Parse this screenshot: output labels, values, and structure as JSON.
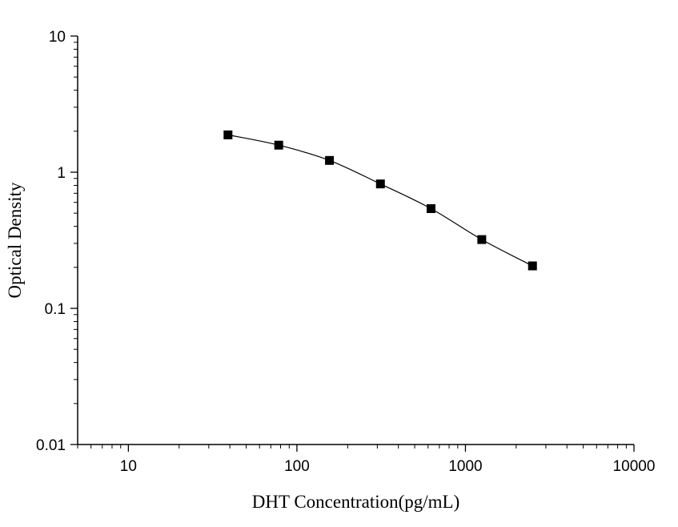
{
  "chart_data": {
    "type": "scatter",
    "title": "",
    "xlabel": "DHT Concentration(pg/mL)",
    "ylabel": "Optical Density",
    "x_scale": "log",
    "y_scale": "log",
    "xlim": [
      5,
      10000
    ],
    "ylim": [
      0.01,
      10
    ],
    "x_ticks": [
      10,
      100,
      1000,
      10000
    ],
    "x_tick_labels": [
      "10",
      "100",
      "1000",
      "10000"
    ],
    "y_ticks": [
      0.01,
      0.1,
      1,
      10
    ],
    "y_tick_labels": [
      "0.01",
      "0.1",
      "1",
      "10"
    ],
    "grid": false,
    "legend": "none",
    "series": [
      {
        "x": [
          39,
          78,
          156,
          313,
          625,
          1250,
          2500
        ],
        "y": [
          1.88,
          1.58,
          1.22,
          0.82,
          0.54,
          0.32,
          0.205
        ],
        "marker": "square",
        "fit_line": true,
        "color": "#000000"
      }
    ]
  }
}
